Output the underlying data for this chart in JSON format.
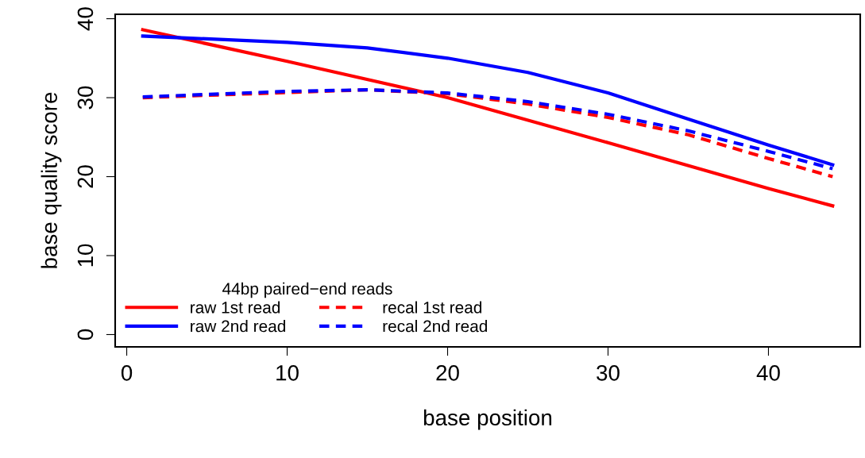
{
  "chart_data": {
    "type": "line",
    "xlabel": "base position",
    "ylabel": "base quality score",
    "xlim": [
      -0.72,
      45.72
    ],
    "ylim": [
      -1.56,
      40.56
    ],
    "xticks": [
      0,
      10,
      20,
      30,
      40
    ],
    "yticks": [
      0,
      10,
      20,
      30,
      40
    ],
    "legend": "bottom left",
    "legend_title": "44bp paired−end reads",
    "grid": false,
    "series": [
      {
        "name": "raw 1st read",
        "color": "#ff0000",
        "line_style": "solid",
        "x": [
          1,
          10,
          20,
          30,
          40,
          44
        ],
        "values": [
          38.6,
          34.6,
          30.0,
          24.3,
          18.5,
          16.3
        ]
      },
      {
        "name": "raw 2nd read",
        "color": "#0000ff",
        "line_style": "solid",
        "x": [
          1,
          10,
          15,
          20,
          25,
          30,
          35,
          40,
          44
        ],
        "values": [
          37.8,
          37.0,
          36.3,
          35.0,
          33.2,
          30.6,
          27.3,
          24.0,
          21.5
        ]
      },
      {
        "name": "recal 1st read",
        "color": "#ff0000",
        "line_style": "dashed",
        "x": [
          1,
          5,
          15,
          20,
          25,
          30,
          35,
          40,
          44
        ],
        "values": [
          30.0,
          30.3,
          31.0,
          30.5,
          29.2,
          27.5,
          25.3,
          22.3,
          20.0
        ]
      },
      {
        "name": "recal 2nd read",
        "color": "#0000ff",
        "line_style": "dashed",
        "x": [
          1,
          10,
          15,
          20,
          25,
          30,
          35,
          40,
          44
        ],
        "values": [
          30.1,
          30.8,
          31.0,
          30.6,
          29.5,
          27.9,
          25.8,
          23.2,
          21.0
        ]
      }
    ]
  }
}
